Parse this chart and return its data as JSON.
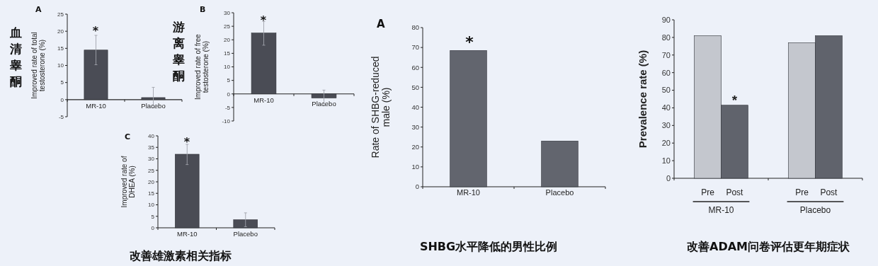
{
  "chart_data": [
    {
      "type": "bar",
      "ylabel": "Improved rate of total testosterone (%)",
      "categories": [
        "MR-10",
        "Placebo"
      ],
      "values": [
        14.5,
        0.6
      ],
      "errors": [
        [
          10.2,
          18.8
        ],
        [
          -2.4,
          3.6
        ]
      ],
      "color": "#4a4c55",
      "ylim": [
        -5,
        25
      ],
      "yticks": [
        -5,
        0,
        5,
        10,
        15,
        20,
        25
      ],
      "annotations": [
        "A",
        "血清睾酮",
        "*"
      ]
    },
    {
      "type": "bar",
      "ylabel": "Improved rate of free testosterone (%)",
      "categories": [
        "MR-10",
        "Placebo"
      ],
      "values": [
        22.5,
        -1.5
      ],
      "errors": [
        [
          18,
          26.8
        ],
        [
          -4.4,
          1.4
        ]
      ],
      "color": "#4a4c55",
      "ylim": [
        -10,
        30
      ],
      "yticks": [
        -10,
        -5,
        0,
        5,
        10,
        15,
        20,
        25,
        30
      ],
      "annotations": [
        "B",
        "游离睾酮",
        "*"
      ]
    },
    {
      "type": "bar",
      "ylabel": "Improved rate of DHEA (%)",
      "categories": [
        "MR-10",
        "Placebo"
      ],
      "values": [
        32,
        3.5
      ],
      "errors": [
        [
          27.5,
          36.3
        ],
        [
          0.5,
          6.5
        ]
      ],
      "color": "#4a4c55",
      "ylim": [
        0,
        40
      ],
      "yticks": [
        0,
        5,
        10,
        15,
        20,
        25,
        30,
        35,
        40
      ],
      "annotations": [
        "C",
        "改善雄激素相关指标",
        "*"
      ]
    },
    {
      "type": "bar",
      "ylabel": "Rate of SHBG-reduced male (%)",
      "categories": [
        "MR-10",
        "Placebo"
      ],
      "values": [
        68.5,
        23
      ],
      "color": "#62656e",
      "ylim": [
        0,
        80
      ],
      "yticks": [
        0,
        10,
        20,
        30,
        40,
        50,
        60,
        70,
        80
      ],
      "annotations": [
        "A",
        "*",
        "SHBG水平降低的男性比例"
      ]
    },
    {
      "type": "bar",
      "ylabel": "Prevalence rate (%)",
      "categories": [
        "MR-10",
        "Placebo"
      ],
      "series": [
        {
          "name": "Pre",
          "color": "#c4c7ce",
          "values": [
            81,
            77
          ]
        },
        {
          "name": "Post",
          "color": "#60636c",
          "values": [
            41.5,
            81
          ]
        }
      ],
      "ylim": [
        0,
        90
      ],
      "yticks": [
        0,
        10,
        20,
        30,
        40,
        50,
        60,
        70,
        80,
        90
      ],
      "annotations": [
        {
          "text": "*",
          "x": "MR-10",
          "y": 47
        },
        "改善ADAM问卷评估更年期症状"
      ]
    }
  ]
}
